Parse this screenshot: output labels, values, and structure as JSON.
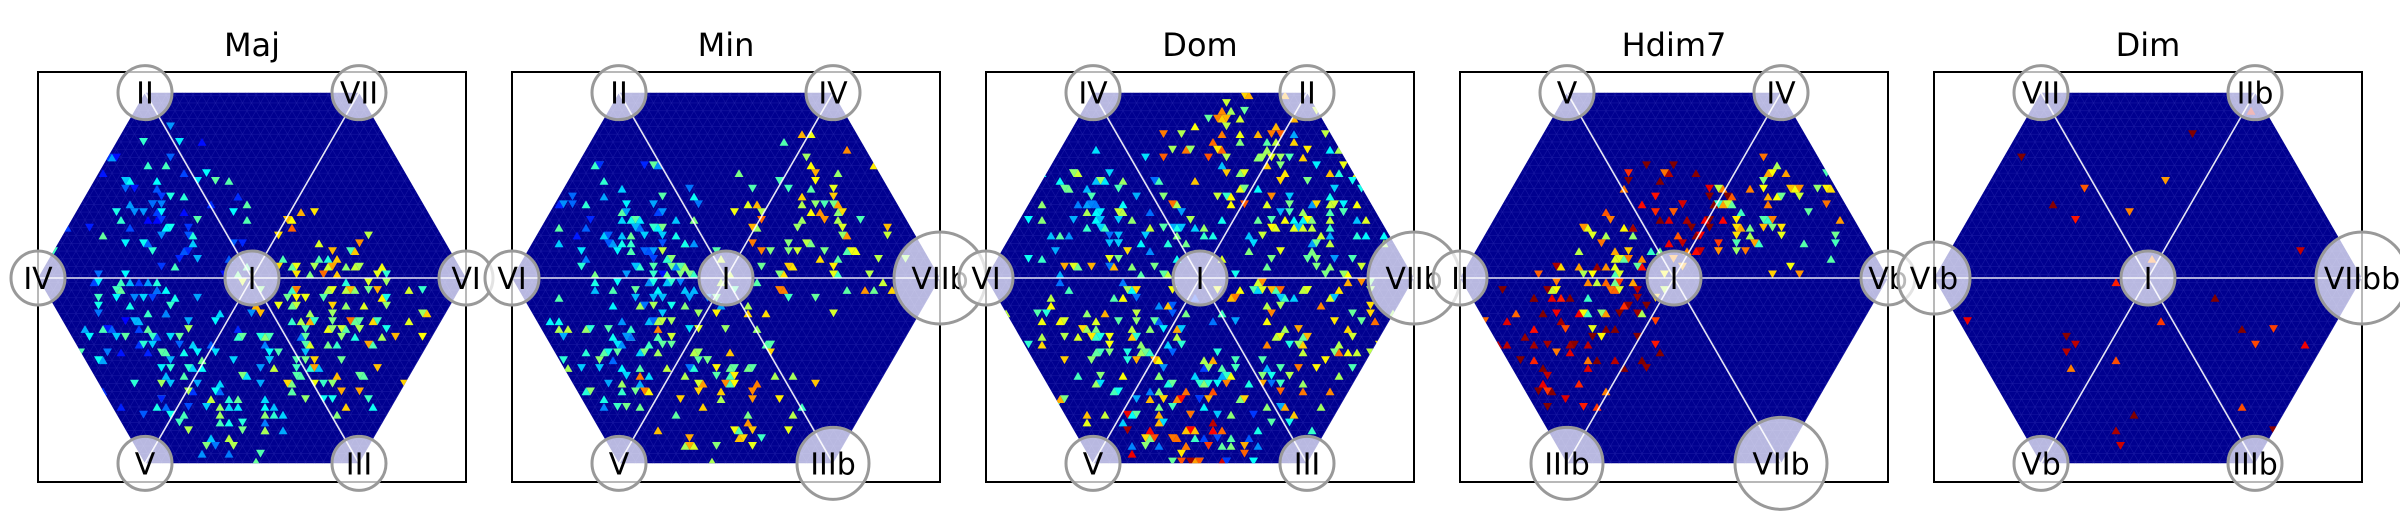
{
  "chart_data": [
    {
      "type": "heatmap",
      "title": "Maj",
      "grid": "hexagonal-triangular",
      "colormap": "jet",
      "nodes": [
        {
          "label": "I",
          "position": "center",
          "size": "small"
        },
        {
          "label": "II",
          "position": "top-left",
          "size": "small"
        },
        {
          "label": "VII",
          "position": "top-right",
          "size": "small"
        },
        {
          "label": "IV",
          "position": "left",
          "size": "small"
        },
        {
          "label": "VI",
          "position": "right",
          "size": "small"
        },
        {
          "label": "V",
          "position": "bottom-left",
          "size": "small"
        },
        {
          "label": "III",
          "position": "bottom-right",
          "size": "small"
        }
      ],
      "hotspots": [
        {
          "sector": "left-upper",
          "level": 0.3,
          "spread": 1.0
        },
        {
          "sector": "right-lower",
          "level": 0.55,
          "spread": 0.8
        },
        {
          "sector": "center-right",
          "level": 0.62,
          "spread": 0.6
        },
        {
          "sector": "lower",
          "level": 0.4,
          "spread": 0.9
        },
        {
          "sector": "left-lower",
          "level": 0.3,
          "spread": 0.8
        }
      ]
    },
    {
      "type": "heatmap",
      "title": "Min",
      "grid": "hexagonal-triangular",
      "colormap": "jet",
      "nodes": [
        {
          "label": "I",
          "position": "center",
          "size": "small"
        },
        {
          "label": "II",
          "position": "top-left",
          "size": "small"
        },
        {
          "label": "IV",
          "position": "top-right",
          "size": "small"
        },
        {
          "label": "VI",
          "position": "left",
          "size": "small"
        },
        {
          "label": "VIIb",
          "position": "right",
          "size": "large"
        },
        {
          "label": "V",
          "position": "bottom-left",
          "size": "small"
        },
        {
          "label": "IIIb",
          "position": "bottom-right",
          "size": "medium"
        }
      ],
      "hotspots": [
        {
          "sector": "right-upper",
          "level": 0.6,
          "spread": 1.0
        },
        {
          "sector": "lower",
          "level": 0.58,
          "spread": 0.8
        },
        {
          "sector": "left-lower",
          "level": 0.4,
          "spread": 0.7
        },
        {
          "sector": "center-left",
          "level": 0.4,
          "spread": 0.5
        },
        {
          "sector": "left-upper",
          "level": 0.3,
          "spread": 0.6
        }
      ]
    },
    {
      "type": "heatmap",
      "title": "Dom",
      "grid": "hexagonal-triangular",
      "colormap": "jet",
      "nodes": [
        {
          "label": "I",
          "position": "center",
          "size": "small"
        },
        {
          "label": "IV",
          "position": "top-left",
          "size": "small"
        },
        {
          "label": "II",
          "position": "top-right",
          "size": "small"
        },
        {
          "label": "VI",
          "position": "left",
          "size": "small"
        },
        {
          "label": "VIIb",
          "position": "right",
          "size": "large"
        },
        {
          "label": "V",
          "position": "bottom-left",
          "size": "small"
        },
        {
          "label": "III",
          "position": "bottom-right",
          "size": "small"
        }
      ],
      "hotspots": [
        {
          "sector": "top-right",
          "level": 0.62,
          "spread": 1.0
        },
        {
          "sector": "right-upper",
          "level": 0.45,
          "spread": 1.0
        },
        {
          "sector": "right-lower",
          "level": 0.6,
          "spread": 1.0
        },
        {
          "sector": "lower",
          "level": 0.35,
          "spread": 1.0
        },
        {
          "sector": "left-upper",
          "level": 0.4,
          "spread": 1.0
        },
        {
          "sector": "left-lower",
          "level": 0.55,
          "spread": 0.9
        },
        {
          "sector": "bottom",
          "level": 0.8,
          "spread": 0.5
        }
      ]
    },
    {
      "type": "heatmap",
      "title": "Hdim7",
      "grid": "hexagonal-triangular",
      "colormap": "jet",
      "nodes": [
        {
          "label": "I",
          "position": "center",
          "size": "small"
        },
        {
          "label": "V",
          "position": "top-left",
          "size": "small"
        },
        {
          "label": "IV",
          "position": "top-right",
          "size": "small"
        },
        {
          "label": "II",
          "position": "left",
          "size": "small"
        },
        {
          "label": "Vb",
          "position": "right",
          "size": "small"
        },
        {
          "label": "IIIb",
          "position": "bottom-left",
          "size": "medium"
        },
        {
          "label": "VIIb",
          "position": "bottom-right",
          "size": "large"
        }
      ],
      "hotspots": [
        {
          "sector": "left-lower",
          "level": 0.9,
          "spread": 0.8
        },
        {
          "sector": "center-up",
          "level": 0.88,
          "spread": 0.5
        },
        {
          "sector": "right-upper",
          "level": 0.6,
          "spread": 0.5
        },
        {
          "sector": "center-left",
          "level": 0.6,
          "spread": 0.4
        }
      ]
    },
    {
      "type": "heatmap",
      "title": "Dim",
      "grid": "hexagonal-triangular",
      "colormap": "jet",
      "nodes": [
        {
          "label": "I",
          "position": "center",
          "size": "small"
        },
        {
          "label": "VII",
          "position": "top-left",
          "size": "small"
        },
        {
          "label": "IIb",
          "position": "top-right",
          "size": "small"
        },
        {
          "label": "VIb",
          "position": "left",
          "size": "medium"
        },
        {
          "label": "VIIbb",
          "position": "right",
          "size": "large"
        },
        {
          "label": "Vb",
          "position": "bottom-left",
          "size": "small"
        },
        {
          "label": "IIIb",
          "position": "bottom-right",
          "size": "small"
        }
      ],
      "hotspots": [
        {
          "sector": "sparse",
          "level": 0.88,
          "spread": 0.2
        }
      ]
    }
  ]
}
